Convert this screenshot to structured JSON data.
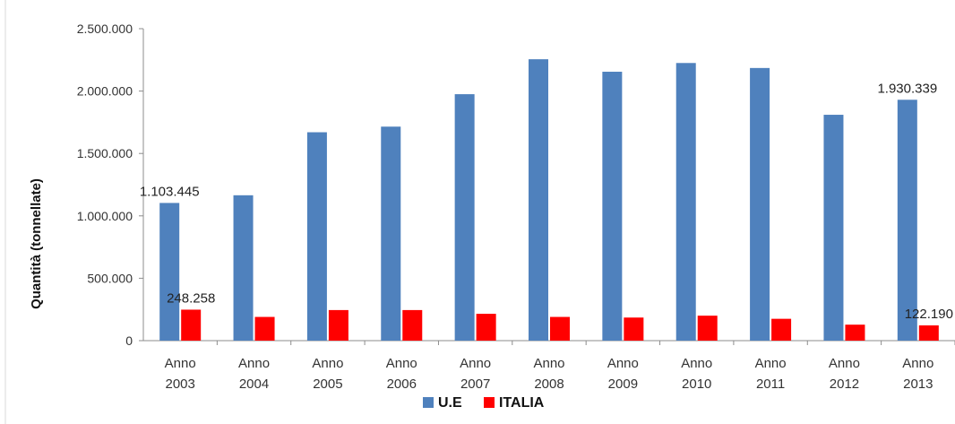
{
  "chart_data": {
    "type": "bar",
    "title": "",
    "xlabel": "",
    "ylabel": "Quantità (tonnellate)",
    "ylim": [
      0,
      2500000
    ],
    "yticks": [
      0,
      500000,
      1000000,
      1500000,
      2000000,
      2500000
    ],
    "ytick_labels": [
      "0",
      "500.000",
      "1.000.000",
      "1.500.000",
      "2.000.000",
      "2.500.000"
    ],
    "grid": false,
    "legend_position": "bottom",
    "categories": [
      [
        "Anno",
        "2003"
      ],
      [
        "Anno",
        "2004"
      ],
      [
        "Anno",
        "2005"
      ],
      [
        "Anno",
        "2006"
      ],
      [
        "Anno",
        "2007"
      ],
      [
        "Anno",
        "2008"
      ],
      [
        "Anno",
        "2009"
      ],
      [
        "Anno",
        "2010"
      ],
      [
        "Anno",
        "2011"
      ],
      [
        "Anno",
        "2012"
      ],
      [
        "Anno",
        "2013"
      ]
    ],
    "series": [
      {
        "name": "U.E",
        "color": "#4f81bd",
        "values": [
          1103445,
          1165000,
          1670000,
          1715000,
          1975000,
          2255000,
          2155000,
          2225000,
          2185000,
          1810000,
          1930339
        ]
      },
      {
        "name": "ITALIA",
        "color": "#ff0000",
        "values": [
          248258,
          190000,
          245000,
          245000,
          215000,
          190000,
          185000,
          200000,
          175000,
          128000,
          122190
        ]
      }
    ],
    "data_labels": [
      {
        "series": 0,
        "index": 0,
        "text": "1.103.445"
      },
      {
        "series": 0,
        "index": 10,
        "text": "1.930.339"
      },
      {
        "series": 1,
        "index": 0,
        "text": "248.258"
      },
      {
        "series": 1,
        "index": 10,
        "text": "122.190"
      }
    ]
  }
}
